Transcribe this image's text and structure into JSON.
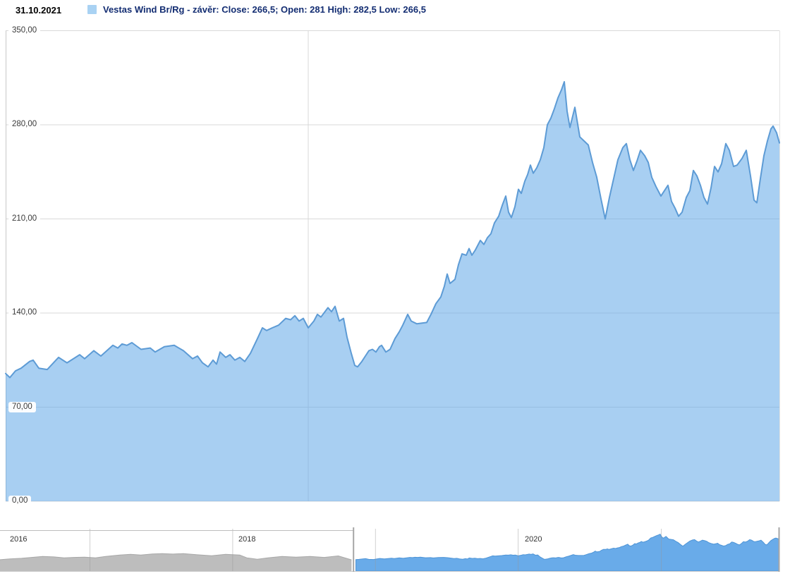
{
  "header": {
    "date_label": "31.10.2021",
    "legend": {
      "symbol_color": "#a9d2f3",
      "label": "Vestas Wind Br/Rg - závěr: Close: 266,5; Open: 281 High: 282,5 Low: 266,5"
    },
    "quote": {
      "close": "266,5",
      "open": "281",
      "high": "282,5",
      "low": "266,5"
    }
  },
  "chart_data": {
    "type": "area",
    "title": "Vestas Wind Br/Rg - závěr",
    "xlabel": "",
    "ylabel": "",
    "ylim": [
      0,
      350
    ],
    "grid": true,
    "grid_color": "#d9d9d9",
    "axis_color": "#c7c7c7",
    "y_ticks": [
      {
        "value": 350,
        "label": "350,00"
      },
      {
        "value": 280,
        "label": "280,00"
      },
      {
        "value": 210,
        "label": "210,00"
      },
      {
        "value": 140,
        "label": "140,00"
      },
      {
        "value": 70,
        "label": "70,00"
      },
      {
        "value": 0,
        "label": "0,00"
      }
    ],
    "x_range": [
      "2018-10-29",
      "2021-10-30"
    ],
    "x_gridlines": [
      "2020-01-01"
    ],
    "series": [
      {
        "name": "Vestas Wind Br/Rg - závěr",
        "color": "#5d9bd5",
        "fill": "rgba(97,167,232,0.55)",
        "points": [
          [
            "2018-10-29",
            95
          ],
          [
            "2018-11-04",
            92
          ],
          [
            "2018-11-12",
            97
          ],
          [
            "2018-11-20",
            99
          ],
          [
            "2018-12-02",
            104
          ],
          [
            "2018-12-07",
            105
          ],
          [
            "2018-12-15",
            99
          ],
          [
            "2018-12-27",
            98
          ],
          [
            "2019-01-12",
            107
          ],
          [
            "2019-01-24",
            103
          ],
          [
            "2019-02-11",
            109
          ],
          [
            "2019-02-18",
            106
          ],
          [
            "2019-03-03",
            112
          ],
          [
            "2019-03-13",
            108
          ],
          [
            "2019-03-30",
            116
          ],
          [
            "2019-04-06",
            114
          ],
          [
            "2019-04-12",
            117
          ],
          [
            "2019-04-19",
            116
          ],
          [
            "2019-04-26",
            118
          ],
          [
            "2019-05-09",
            113
          ],
          [
            "2019-05-22",
            114
          ],
          [
            "2019-05-29",
            111
          ],
          [
            "2019-06-11",
            115
          ],
          [
            "2019-06-25",
            116
          ],
          [
            "2019-07-08",
            112
          ],
          [
            "2019-07-21",
            106
          ],
          [
            "2019-07-28",
            108
          ],
          [
            "2019-08-04",
            103
          ],
          [
            "2019-08-12",
            100
          ],
          [
            "2019-08-19",
            105
          ],
          [
            "2019-08-24",
            102
          ],
          [
            "2019-08-29",
            111
          ],
          [
            "2019-09-06",
            107
          ],
          [
            "2019-09-12",
            109
          ],
          [
            "2019-09-19",
            105
          ],
          [
            "2019-09-26",
            107
          ],
          [
            "2019-10-03",
            104
          ],
          [
            "2019-10-11",
            110
          ],
          [
            "2019-10-21",
            121
          ],
          [
            "2019-10-28",
            129
          ],
          [
            "2019-11-03",
            127
          ],
          [
            "2019-11-11",
            129
          ],
          [
            "2019-11-20",
            131
          ],
          [
            "2019-11-30",
            136
          ],
          [
            "2019-12-07",
            135
          ],
          [
            "2019-12-13",
            138
          ],
          [
            "2019-12-19",
            134
          ],
          [
            "2019-12-25",
            136
          ],
          [
            "2020-01-01",
            129
          ],
          [
            "2020-01-09",
            134
          ],
          [
            "2020-01-14",
            139
          ],
          [
            "2020-01-19",
            137
          ],
          [
            "2020-01-29",
            144
          ],
          [
            "2020-02-03",
            141
          ],
          [
            "2020-02-08",
            145
          ],
          [
            "2020-02-14",
            134
          ],
          [
            "2020-02-20",
            136
          ],
          [
            "2020-02-25",
            122
          ],
          [
            "2020-03-02",
            110
          ],
          [
            "2020-03-07",
            101
          ],
          [
            "2020-03-11",
            100
          ],
          [
            "2020-03-17",
            104
          ],
          [
            "2020-03-22",
            108
          ],
          [
            "2020-03-27",
            112
          ],
          [
            "2020-04-01",
            113
          ],
          [
            "2020-04-06",
            111
          ],
          [
            "2020-04-11",
            115
          ],
          [
            "2020-04-14",
            116
          ],
          [
            "2020-04-20",
            111
          ],
          [
            "2020-04-26",
            113
          ],
          [
            "2020-05-03",
            121
          ],
          [
            "2020-05-09",
            126
          ],
          [
            "2020-05-14",
            131
          ],
          [
            "2020-05-21",
            139
          ],
          [
            "2020-05-26",
            134
          ],
          [
            "2020-06-03",
            132
          ],
          [
            "2020-06-17",
            133
          ],
          [
            "2020-06-23",
            139
          ],
          [
            "2020-06-30",
            147
          ],
          [
            "2020-07-07",
            152
          ],
          [
            "2020-07-12",
            160
          ],
          [
            "2020-07-16",
            169
          ],
          [
            "2020-07-20",
            162
          ],
          [
            "2020-07-27",
            165
          ],
          [
            "2020-08-01",
            176
          ],
          [
            "2020-08-06",
            184
          ],
          [
            "2020-08-12",
            183
          ],
          [
            "2020-08-16",
            188
          ],
          [
            "2020-08-20",
            183
          ],
          [
            "2020-08-25",
            187
          ],
          [
            "2020-09-01",
            194
          ],
          [
            "2020-09-06",
            191
          ],
          [
            "2020-09-11",
            196
          ],
          [
            "2020-09-16",
            199
          ],
          [
            "2020-09-21",
            207
          ],
          [
            "2020-09-27",
            212
          ],
          [
            "2020-10-02",
            220
          ],
          [
            "2020-10-07",
            227
          ],
          [
            "2020-10-11",
            215
          ],
          [
            "2020-10-15",
            211
          ],
          [
            "2020-10-20",
            219
          ],
          [
            "2020-10-25",
            232
          ],
          [
            "2020-10-29",
            229
          ],
          [
            "2020-11-03",
            238
          ],
          [
            "2020-11-07",
            243
          ],
          [
            "2020-11-11",
            250
          ],
          [
            "2020-11-15",
            244
          ],
          [
            "2020-11-20",
            248
          ],
          [
            "2020-11-25",
            254
          ],
          [
            "2020-11-30",
            263
          ],
          [
            "2020-12-05",
            280
          ],
          [
            "2020-12-10",
            285
          ],
          [
            "2020-12-15",
            292
          ],
          [
            "2020-12-20",
            300
          ],
          [
            "2020-12-25",
            306
          ],
          [
            "2020-12-29",
            312
          ],
          [
            "2021-01-02",
            290
          ],
          [
            "2021-01-06",
            278
          ],
          [
            "2021-01-13",
            293
          ],
          [
            "2021-01-20",
            271
          ],
          [
            "2021-01-26",
            268
          ],
          [
            "2021-02-01",
            265
          ],
          [
            "2021-02-07",
            252
          ],
          [
            "2021-02-13",
            241
          ],
          [
            "2021-02-19",
            225
          ],
          [
            "2021-02-25",
            210
          ],
          [
            "2021-03-03",
            226
          ],
          [
            "2021-03-09",
            240
          ],
          [
            "2021-03-15",
            254
          ],
          [
            "2021-03-22",
            263
          ],
          [
            "2021-03-27",
            266
          ],
          [
            "2021-04-01",
            254
          ],
          [
            "2021-04-06",
            246
          ],
          [
            "2021-04-11",
            253
          ],
          [
            "2021-04-16",
            261
          ],
          [
            "2021-04-22",
            257
          ],
          [
            "2021-04-27",
            252
          ],
          [
            "2021-05-02",
            241
          ],
          [
            "2021-05-08",
            234
          ],
          [
            "2021-05-15",
            227
          ],
          [
            "2021-05-20",
            231
          ],
          [
            "2021-05-25",
            235
          ],
          [
            "2021-05-30",
            223
          ],
          [
            "2021-06-04",
            218
          ],
          [
            "2021-06-09",
            212
          ],
          [
            "2021-06-14",
            215
          ],
          [
            "2021-06-20",
            226
          ],
          [
            "2021-06-25",
            231
          ],
          [
            "2021-06-30",
            246
          ],
          [
            "2021-07-05",
            242
          ],
          [
            "2021-07-10",
            235
          ],
          [
            "2021-07-15",
            226
          ],
          [
            "2021-07-20",
            221
          ],
          [
            "2021-07-25",
            233
          ],
          [
            "2021-07-30",
            249
          ],
          [
            "2021-08-04",
            245
          ],
          [
            "2021-08-09",
            251
          ],
          [
            "2021-08-15",
            266
          ],
          [
            "2021-08-20",
            261
          ],
          [
            "2021-08-26",
            249
          ],
          [
            "2021-08-31",
            250
          ],
          [
            "2021-09-07",
            255
          ],
          [
            "2021-09-13",
            261
          ],
          [
            "2021-09-19",
            242
          ],
          [
            "2021-09-24",
            224
          ],
          [
            "2021-09-28",
            222
          ],
          [
            "2021-10-03",
            240
          ],
          [
            "2021-10-08",
            257
          ],
          [
            "2021-10-13",
            268
          ],
          [
            "2021-10-18",
            277
          ],
          [
            "2021-10-21",
            279
          ],
          [
            "2021-10-26",
            274
          ],
          [
            "2021-10-30",
            266.5
          ]
        ]
      }
    ]
  },
  "navigator": {
    "x_range": [
      "2016-05-16",
      "2021-10-30"
    ],
    "window_start": "2018-11-06",
    "ylim": [
      0,
      340
    ],
    "selected_color": "rgba(97,167,232,0.95)",
    "selected_line": "#4e94d6",
    "masked_color": "#bdbdbd",
    "masked_line": "#a8a8a8",
    "outline_color": "#bdbdbd",
    "handle_color": "#a6a6a6",
    "tick_color": "rgba(150,150,150,0.45)",
    "year_ticks": [
      "2017-01-01",
      "2018-01-01",
      "2019-01-01",
      "2020-01-01",
      "2021-01-01"
    ],
    "year_labels": [
      {
        "text": "2016",
        "x": 14
      },
      {
        "text": "2018",
        "x": 338
      },
      {
        "text": "2020",
        "x": 744
      }
    ],
    "masked_points": [
      [
        "2016-05-16",
        96
      ],
      [
        "2016-06-10",
        103
      ],
      [
        "2016-07-10",
        108
      ],
      [
        "2016-08-05",
        116
      ],
      [
        "2016-09-02",
        124
      ],
      [
        "2016-10-01",
        120
      ],
      [
        "2016-10-27",
        112
      ],
      [
        "2016-11-20",
        116
      ],
      [
        "2016-12-18",
        118
      ],
      [
        "2017-01-15",
        112
      ],
      [
        "2017-02-10",
        124
      ],
      [
        "2017-03-18",
        136
      ],
      [
        "2017-04-15",
        142
      ],
      [
        "2017-05-11",
        136
      ],
      [
        "2017-06-10",
        145
      ],
      [
        "2017-07-05",
        148
      ],
      [
        "2017-08-01",
        144
      ],
      [
        "2017-08-28",
        148
      ],
      [
        "2017-10-03",
        138
      ],
      [
        "2017-11-08",
        130
      ],
      [
        "2017-12-14",
        142
      ],
      [
        "2018-01-19",
        136
      ],
      [
        "2018-02-06",
        112
      ],
      [
        "2018-03-05",
        100
      ],
      [
        "2018-04-01",
        112
      ],
      [
        "2018-05-07",
        124
      ],
      [
        "2018-06-12",
        118
      ],
      [
        "2018-07-18",
        124
      ],
      [
        "2018-08-23",
        116
      ],
      [
        "2018-09-28",
        128
      ],
      [
        "2018-11-01",
        95
      ]
    ]
  }
}
